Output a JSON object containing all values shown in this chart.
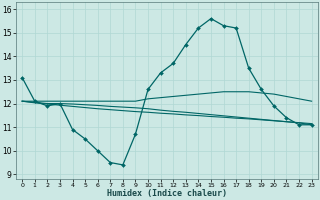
{
  "title": "",
  "xlabel": "Humidex (Indice chaleur)",
  "ylabel": "",
  "background_color": "#cce8e4",
  "grid_color": "#b0d8d4",
  "line_color": "#006666",
  "xlim": [
    -0.5,
    23.5
  ],
  "ylim": [
    8.8,
    16.3
  ],
  "yticks": [
    9,
    10,
    11,
    12,
    13,
    14,
    15,
    16
  ],
  "xticks": [
    0,
    1,
    2,
    3,
    4,
    5,
    6,
    7,
    8,
    9,
    10,
    11,
    12,
    13,
    14,
    15,
    16,
    17,
    18,
    19,
    20,
    21,
    22,
    23
  ],
  "series": [
    {
      "x": [
        0,
        1,
        2,
        3,
        4,
        5,
        6,
        7,
        8,
        9,
        10,
        11,
        12,
        13,
        14,
        15,
        16,
        17,
        18,
        19,
        20,
        21,
        22,
        23
      ],
      "y": [
        13.1,
        12.1,
        11.9,
        12.0,
        10.9,
        10.5,
        10.0,
        9.5,
        9.4,
        10.7,
        12.6,
        13.3,
        13.7,
        14.5,
        15.2,
        15.6,
        15.3,
        15.2,
        13.5,
        12.6,
        11.9,
        11.4,
        11.1,
        11.1
      ],
      "marker": "D",
      "markersize": 2.0,
      "linewidth": 0.9
    },
    {
      "x": [
        0,
        1,
        2,
        3,
        4,
        5,
        6,
        7,
        8,
        9,
        10,
        11,
        12,
        13,
        14,
        15,
        16,
        17,
        18,
        19,
        20,
        21,
        22,
        23
      ],
      "y": [
        12.1,
        12.1,
        12.1,
        12.1,
        12.1,
        12.1,
        12.1,
        12.1,
        12.1,
        12.1,
        12.2,
        12.25,
        12.3,
        12.35,
        12.4,
        12.45,
        12.5,
        12.5,
        12.5,
        12.45,
        12.4,
        12.3,
        12.2,
        12.1
      ],
      "marker": null,
      "markersize": 0,
      "linewidth": 0.8
    },
    {
      "x": [
        0,
        1,
        2,
        3,
        4,
        5,
        6,
        7,
        8,
        9,
        10,
        11,
        12,
        13,
        14,
        15,
        16,
        17,
        18,
        19,
        20,
        21,
        22,
        23
      ],
      "y": [
        12.1,
        12.05,
        12.0,
        12.0,
        11.98,
        11.95,
        11.92,
        11.88,
        11.85,
        11.82,
        11.78,
        11.72,
        11.67,
        11.63,
        11.58,
        11.53,
        11.48,
        11.43,
        11.38,
        11.33,
        11.28,
        11.23,
        11.18,
        11.1
      ],
      "marker": null,
      "markersize": 0,
      "linewidth": 0.8
    },
    {
      "x": [
        0,
        1,
        2,
        3,
        4,
        5,
        6,
        7,
        8,
        9,
        10,
        11,
        12,
        13,
        14,
        15,
        16,
        17,
        18,
        19,
        20,
        21,
        22,
        23
      ],
      "y": [
        12.1,
        12.03,
        11.98,
        11.93,
        11.88,
        11.83,
        11.78,
        11.74,
        11.7,
        11.66,
        11.63,
        11.59,
        11.56,
        11.52,
        11.49,
        11.45,
        11.42,
        11.38,
        11.35,
        11.31,
        11.27,
        11.23,
        11.19,
        11.15
      ],
      "marker": null,
      "markersize": 0,
      "linewidth": 0.8
    }
  ]
}
